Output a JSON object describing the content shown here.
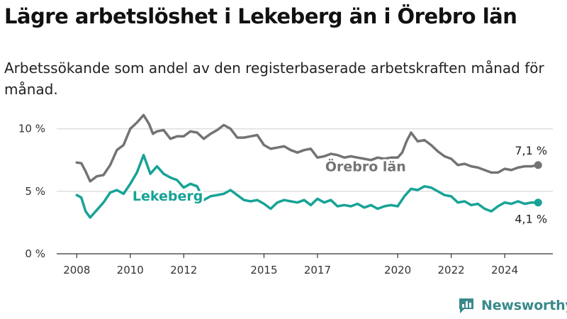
{
  "header": {
    "title": "Lägre arbetslöshet i Lekeberg än i Örebro län",
    "subtitle": "Arbetssökande som andel av den registerbaserade arbetskraften månad för månad."
  },
  "brand": {
    "name": "Newsworthy",
    "icon": "bar-chart-logo-icon",
    "color": "#3a8a8c"
  },
  "chart_data": {
    "type": "line",
    "xlabel": "",
    "ylabel": "",
    "x_ticks": [
      2008,
      2010,
      2012,
      2015,
      2017,
      2020,
      2022,
      2024
    ],
    "y_ticks": [
      0,
      5,
      10
    ],
    "y_tick_labels": [
      "0 %",
      "5 %",
      "10 %"
    ],
    "xlim": [
      2007.25,
      2025.8
    ],
    "ylim": [
      0,
      11.8
    ],
    "grid": true,
    "legend": "inline labels",
    "series": [
      {
        "name": "Örebro län",
        "color": "#737373",
        "label_pos": [
          2018.8,
          7.0
        ],
        "end_label": "7,1 %",
        "points": [
          [
            2008.0,
            7.3
          ],
          [
            2008.17,
            7.25
          ],
          [
            2008.33,
            6.6
          ],
          [
            2008.5,
            5.8
          ],
          [
            2008.75,
            6.2
          ],
          [
            2009.0,
            6.3
          ],
          [
            2009.25,
            7.1
          ],
          [
            2009.5,
            8.3
          ],
          [
            2009.75,
            8.7
          ],
          [
            2010.0,
            10.0
          ],
          [
            2010.25,
            10.5
          ],
          [
            2010.5,
            11.1
          ],
          [
            2010.7,
            10.4
          ],
          [
            2010.85,
            9.6
          ],
          [
            2011.0,
            9.8
          ],
          [
            2011.25,
            9.9
          ],
          [
            2011.5,
            9.2
          ],
          [
            2011.75,
            9.4
          ],
          [
            2012.0,
            9.4
          ],
          [
            2012.25,
            9.8
          ],
          [
            2012.5,
            9.7
          ],
          [
            2012.75,
            9.2
          ],
          [
            2013.0,
            9.6
          ],
          [
            2013.25,
            9.9
          ],
          [
            2013.5,
            10.3
          ],
          [
            2013.75,
            10.0
          ],
          [
            2014.0,
            9.3
          ],
          [
            2014.25,
            9.3
          ],
          [
            2014.5,
            9.4
          ],
          [
            2014.75,
            9.5
          ],
          [
            2015.0,
            8.7
          ],
          [
            2015.25,
            8.4
          ],
          [
            2015.5,
            8.5
          ],
          [
            2015.75,
            8.6
          ],
          [
            2016.0,
            8.3
          ],
          [
            2016.25,
            8.1
          ],
          [
            2016.5,
            8.3
          ],
          [
            2016.75,
            8.4
          ],
          [
            2017.0,
            7.7
          ],
          [
            2017.25,
            7.8
          ],
          [
            2017.5,
            8.0
          ],
          [
            2017.75,
            7.9
          ],
          [
            2018.0,
            7.7
          ],
          [
            2018.25,
            7.8
          ],
          [
            2018.5,
            7.7
          ],
          [
            2018.75,
            7.6
          ],
          [
            2019.0,
            7.5
          ],
          [
            2019.25,
            7.7
          ],
          [
            2019.5,
            7.6
          ],
          [
            2019.75,
            7.7
          ],
          [
            2020.0,
            7.7
          ],
          [
            2020.17,
            8.1
          ],
          [
            2020.33,
            9.0
          ],
          [
            2020.5,
            9.7
          ],
          [
            2020.75,
            9.0
          ],
          [
            2021.0,
            9.1
          ],
          [
            2021.25,
            8.7
          ],
          [
            2021.5,
            8.2
          ],
          [
            2021.75,
            7.8
          ],
          [
            2022.0,
            7.6
          ],
          [
            2022.25,
            7.1
          ],
          [
            2022.5,
            7.2
          ],
          [
            2022.75,
            7.0
          ],
          [
            2023.0,
            6.9
          ],
          [
            2023.25,
            6.7
          ],
          [
            2023.5,
            6.5
          ],
          [
            2023.75,
            6.5
          ],
          [
            2024.0,
            6.8
          ],
          [
            2024.25,
            6.7
          ],
          [
            2024.5,
            6.9
          ],
          [
            2024.75,
            7.0
          ],
          [
            2025.0,
            7.0
          ],
          [
            2025.25,
            7.1
          ]
        ]
      },
      {
        "name": "Lekeberg",
        "color": "#16a396",
        "label_pos": [
          2011.4,
          4.65
        ],
        "end_label": "4,1 %",
        "points": [
          [
            2008.0,
            4.7
          ],
          [
            2008.17,
            4.5
          ],
          [
            2008.33,
            3.4
          ],
          [
            2008.5,
            2.9
          ],
          [
            2008.75,
            3.5
          ],
          [
            2009.0,
            4.1
          ],
          [
            2009.25,
            4.9
          ],
          [
            2009.5,
            5.1
          ],
          [
            2009.75,
            4.8
          ],
          [
            2010.0,
            5.6
          ],
          [
            2010.25,
            6.5
          ],
          [
            2010.5,
            7.9
          ],
          [
            2010.75,
            6.4
          ],
          [
            2011.0,
            7.0
          ],
          [
            2011.25,
            6.4
          ],
          [
            2011.5,
            6.1
          ],
          [
            2011.75,
            5.9
          ],
          [
            2012.0,
            5.3
          ],
          [
            2012.25,
            5.6
          ],
          [
            2012.5,
            5.4
          ],
          [
            2012.75,
            4.3
          ],
          [
            2013.0,
            4.6
          ],
          [
            2013.25,
            4.7
          ],
          [
            2013.5,
            4.8
          ],
          [
            2013.75,
            5.1
          ],
          [
            2014.0,
            4.7
          ],
          [
            2014.25,
            4.3
          ],
          [
            2014.5,
            4.2
          ],
          [
            2014.75,
            4.3
          ],
          [
            2015.0,
            4.0
          ],
          [
            2015.25,
            3.6
          ],
          [
            2015.5,
            4.1
          ],
          [
            2015.75,
            4.3
          ],
          [
            2016.0,
            4.2
          ],
          [
            2016.25,
            4.1
          ],
          [
            2016.5,
            4.3
          ],
          [
            2016.75,
            3.9
          ],
          [
            2017.0,
            4.4
          ],
          [
            2017.25,
            4.1
          ],
          [
            2017.5,
            4.3
          ],
          [
            2017.75,
            3.8
          ],
          [
            2018.0,
            3.9
          ],
          [
            2018.25,
            3.8
          ],
          [
            2018.5,
            4.0
          ],
          [
            2018.75,
            3.7
          ],
          [
            2019.0,
            3.9
          ],
          [
            2019.25,
            3.6
          ],
          [
            2019.5,
            3.8
          ],
          [
            2019.75,
            3.9
          ],
          [
            2020.0,
            3.8
          ],
          [
            2020.25,
            4.6
          ],
          [
            2020.5,
            5.2
          ],
          [
            2020.75,
            5.1
          ],
          [
            2021.0,
            5.4
          ],
          [
            2021.25,
            5.3
          ],
          [
            2021.5,
            5.0
          ],
          [
            2021.75,
            4.7
          ],
          [
            2022.0,
            4.6
          ],
          [
            2022.25,
            4.1
          ],
          [
            2022.5,
            4.2
          ],
          [
            2022.75,
            3.9
          ],
          [
            2023.0,
            4.0
          ],
          [
            2023.25,
            3.6
          ],
          [
            2023.5,
            3.4
          ],
          [
            2023.75,
            3.8
          ],
          [
            2024.0,
            4.1
          ],
          [
            2024.25,
            4.0
          ],
          [
            2024.5,
            4.2
          ],
          [
            2024.75,
            4.0
          ],
          [
            2025.0,
            4.1
          ],
          [
            2025.25,
            4.1
          ]
        ]
      }
    ]
  }
}
